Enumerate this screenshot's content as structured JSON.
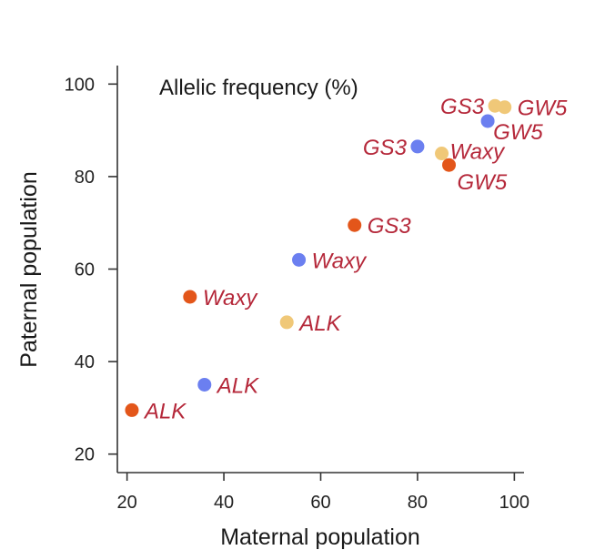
{
  "chart_data": {
    "type": "scatter",
    "title": "Allelic frequency (%)",
    "xlabel": "Maternal population",
    "ylabel": "Paternal population",
    "xlim": [
      18,
      102
    ],
    "ylim": [
      16,
      104
    ],
    "xticks": [
      20,
      40,
      60,
      80,
      100
    ],
    "yticks": [
      20,
      40,
      60,
      80,
      100
    ],
    "label_color": "#b5283a",
    "series": [
      {
        "name": "orange",
        "color": "#e3561a",
        "points": [
          {
            "x": 21,
            "y": 29.5,
            "label": "ALK",
            "anchor": "right"
          },
          {
            "x": 33,
            "y": 54,
            "label": "Waxy",
            "anchor": "right"
          },
          {
            "x": 67,
            "y": 69.5,
            "label": "GS3",
            "anchor": "right"
          },
          {
            "x": 86.5,
            "y": 82.5,
            "label": "GW5",
            "anchor": "below-right"
          }
        ]
      },
      {
        "name": "blue",
        "color": "#6b7ff0",
        "points": [
          {
            "x": 36,
            "y": 35,
            "label": "ALK",
            "anchor": "right"
          },
          {
            "x": 55.5,
            "y": 62,
            "label": "Waxy",
            "anchor": "right"
          },
          {
            "x": 80,
            "y": 86.5,
            "label": "GS3",
            "anchor": "left"
          },
          {
            "x": 94.5,
            "y": 92,
            "label": "GW5",
            "anchor": "below-right-tight"
          }
        ]
      },
      {
        "name": "yellow",
        "color": "#f0c878",
        "points": [
          {
            "x": 53,
            "y": 48.5,
            "label": "ALK",
            "anchor": "right"
          },
          {
            "x": 85,
            "y": 85,
            "label": "Waxy",
            "anchor": "above-right"
          },
          {
            "x": 96,
            "y": 95.3,
            "label": "GS3",
            "anchor": "left"
          },
          {
            "x": 98,
            "y": 95,
            "label": "GW5",
            "anchor": "right"
          }
        ]
      }
    ]
  }
}
